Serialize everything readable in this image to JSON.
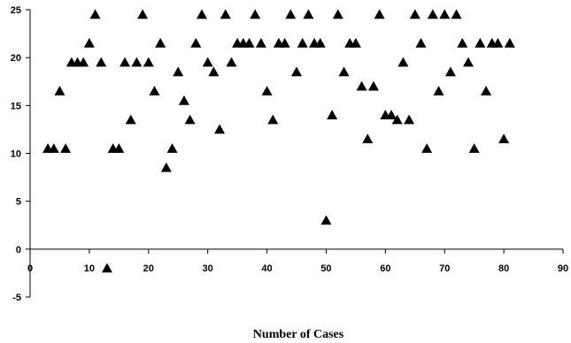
{
  "chart_data": {
    "type": "scatter",
    "title": "",
    "xlabel": "Number of  Cases",
    "ylabel": "",
    "xlim": [
      0,
      90
    ],
    "ylim": [
      -5,
      25
    ],
    "x_ticks": [
      "0",
      "10",
      "20",
      "30",
      "40",
      "50",
      "60",
      "70",
      "80",
      "90"
    ],
    "y_ticks": [
      "25",
      "20",
      "15",
      "10",
      "5",
      "0",
      "-5"
    ],
    "grid": false,
    "legend": "none",
    "marker": "triangle",
    "marker_color": "#000000",
    "series": [
      {
        "points": [
          [
            3,
            10.5
          ],
          [
            4,
            10.5
          ],
          [
            5,
            16.5
          ],
          [
            6,
            10.5
          ],
          [
            7,
            19.5
          ],
          [
            8,
            19.5
          ],
          [
            9,
            19.5
          ],
          [
            10,
            21.5
          ],
          [
            11,
            24.5
          ],
          [
            12,
            19.5
          ],
          [
            13,
            -2
          ],
          [
            14,
            10.5
          ],
          [
            15,
            10.5
          ],
          [
            16,
            19.5
          ],
          [
            17,
            13.5
          ],
          [
            18,
            19.5
          ],
          [
            19,
            24.5
          ],
          [
            20,
            19.5
          ],
          [
            21,
            16.5
          ],
          [
            22,
            21.5
          ],
          [
            23,
            8.5
          ],
          [
            24,
            10.5
          ],
          [
            25,
            18.5
          ],
          [
            26,
            15.5
          ],
          [
            27,
            13.5
          ],
          [
            28,
            21.5
          ],
          [
            29,
            24.5
          ],
          [
            30,
            19.5
          ],
          [
            31,
            18.5
          ],
          [
            32,
            12.5
          ],
          [
            33,
            24.5
          ],
          [
            34,
            19.5
          ],
          [
            35,
            21.5
          ],
          [
            36,
            21.5
          ],
          [
            37,
            21.5
          ],
          [
            38,
            24.5
          ],
          [
            39,
            21.5
          ],
          [
            40,
            16.5
          ],
          [
            41,
            13.5
          ],
          [
            42,
            21.5
          ],
          [
            43,
            21.5
          ],
          [
            44,
            24.5
          ],
          [
            45,
            18.5
          ],
          [
            46,
            21.5
          ],
          [
            47,
            24.5
          ],
          [
            48,
            21.5
          ],
          [
            49,
            21.5
          ],
          [
            50,
            3
          ],
          [
            51,
            14
          ],
          [
            52,
            24.5
          ],
          [
            53,
            18.5
          ],
          [
            54,
            21.5
          ],
          [
            55,
            21.5
          ],
          [
            56,
            17
          ],
          [
            57,
            11.5
          ],
          [
            58,
            17
          ],
          [
            59,
            24.5
          ],
          [
            60,
            14
          ],
          [
            61,
            14
          ],
          [
            62,
            13.5
          ],
          [
            63,
            19.5
          ],
          [
            64,
            13.5
          ],
          [
            65,
            24.5
          ],
          [
            66,
            21.5
          ],
          [
            67,
            10.5
          ],
          [
            68,
            24.5
          ],
          [
            69,
            16.5
          ],
          [
            70,
            24.5
          ],
          [
            71,
            18.5
          ],
          [
            72,
            24.5
          ],
          [
            73,
            21.5
          ],
          [
            74,
            19.5
          ],
          [
            75,
            10.5
          ],
          [
            76,
            21.5
          ],
          [
            77,
            16.5
          ],
          [
            78,
            21.5
          ],
          [
            79,
            21.5
          ],
          [
            80,
            11.5
          ],
          [
            81,
            21.5
          ]
        ]
      }
    ]
  }
}
